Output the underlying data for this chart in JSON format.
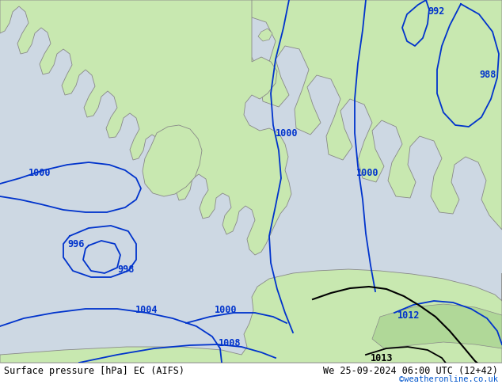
{
  "title_left": "Surface pressure [hPa] EC (AIFS)",
  "title_right": "We 25-09-2024 06:00 UTC (12+42)",
  "copyright": "©weatheronline.co.uk",
  "sea_color": "#cdd8e3",
  "land_color": "#c8e8b0",
  "coast_color": "#888888",
  "isobar_color": "#0033cc",
  "black_color": "#000000",
  "font_size": 9,
  "font_size_copy": 8
}
